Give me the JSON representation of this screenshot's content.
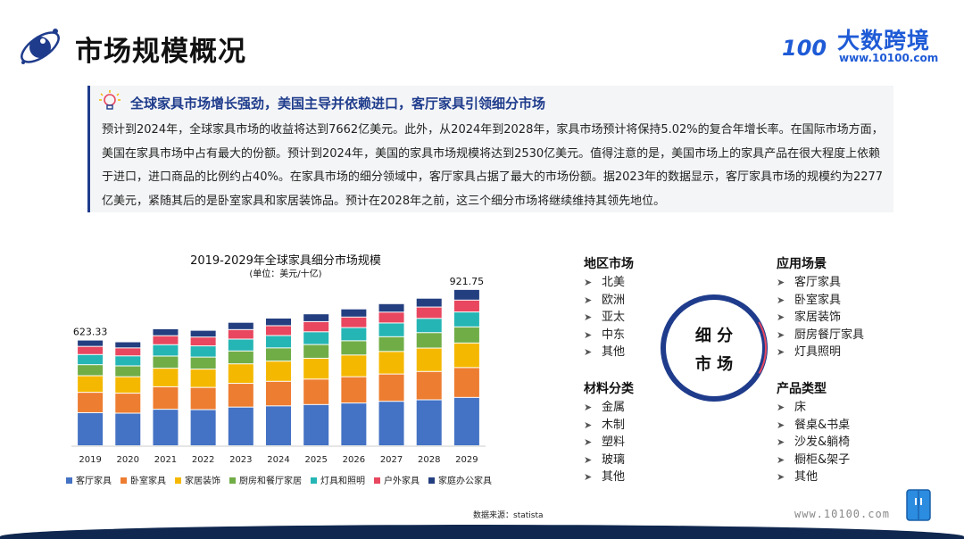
{
  "header": {
    "title": "市场规模概况",
    "brand_name": "大数跨境",
    "brand_url": "www.10100.com",
    "brand_logo_text": "100",
    "brand_color": "#1f5bd6"
  },
  "summary": {
    "heading": "全球家具市场增长强劲，美国主导并依赖进口，客厅家具引领细分市场",
    "body": "预计到2024年，全球家具市场的收益将达到7662亿美元。此外，从2024年到2028年，家具市场预计将保持5.02%的复合年增长率。在国际市场方面，美国在家具市场中占有最大的份额。预计到2024年，美国的家具市场规模将达到2530亿美元。值得注意的是，美国市场上的家具产品在很大程度上依赖于进口，进口商品的比例约占40%。在家具市场的细分领域中，客厅家具占据了最大的市场份额。据2023年的数据显示，客厅家具市场的规模约为2277亿美元，紧随其后的是卧室家具和家居装饰品。预计在2028年之前，这三个细分市场将继续维持其领先地位。"
  },
  "chart_data": {
    "type": "bar",
    "stacked": true,
    "title": "2019-2029年全球家具细分市场规模",
    "subtitle": "(单位：美元/十亿)",
    "categories": [
      "2019",
      "2020",
      "2021",
      "2022",
      "2023",
      "2024",
      "2025",
      "2026",
      "2027",
      "2028",
      "2029"
    ],
    "ylim": [
      0,
      1000
    ],
    "grid": false,
    "legend_position": "bottom",
    "series": [
      {
        "name": "客厅家具",
        "color": "#4472c4",
        "values": [
          195,
          192,
          215,
          213,
          228,
          235,
          243,
          252,
          262,
          271,
          285
        ]
      },
      {
        "name": "卧室家具",
        "color": "#ed7d31",
        "values": [
          120,
          118,
          133,
          131,
          140,
          145,
          150,
          155,
          161,
          167,
          176
        ]
      },
      {
        "name": "家居装饰",
        "color": "#f5b800",
        "values": [
          98,
          97,
          109,
          108,
          115,
          119,
          123,
          128,
          133,
          138,
          145
        ]
      },
      {
        "name": "厨房和餐厅家居",
        "color": "#70ad47",
        "values": [
          65,
          64,
          72,
          71,
          76,
          78,
          81,
          84,
          87,
          91,
          95
        ]
      },
      {
        "name": "灯具和照明",
        "color": "#26b5b5",
        "values": [
          60,
          59,
          67,
          66,
          70,
          73,
          75,
          78,
          81,
          84,
          88
        ]
      },
      {
        "name": "户外家具",
        "color": "#e8475f",
        "values": [
          48,
          47,
          53,
          52,
          56,
          58,
          60,
          62,
          64,
          67,
          70
        ]
      },
      {
        "name": "家庭办公家具",
        "color": "#243f80",
        "values": [
          37.33,
          36,
          41,
          40,
          43,
          45,
          46,
          48,
          50,
          52,
          62.75
        ]
      }
    ],
    "annotations": [
      {
        "category": "2019",
        "label": "623.33"
      },
      {
        "category": "2029",
        "label": "921.75"
      }
    ],
    "source": "数据来源：statista"
  },
  "segments": {
    "center_label_1": "细 分",
    "center_label_2": "市 场",
    "ring_color": "#1f3c8c",
    "groups": [
      {
        "title": "地区市场",
        "items": [
          "北美",
          "欧洲",
          "亚太",
          "中东",
          "其他"
        ]
      },
      {
        "title": "材料分类",
        "items": [
          "金属",
          "木制",
          "塑料",
          "玻璃",
          "其他"
        ]
      },
      {
        "title": "应用场景",
        "items": [
          "客厅家具",
          "卧室家具",
          "家居装饰",
          "厨房餐厅家具",
          "灯具照明"
        ]
      },
      {
        "title": "产品类型",
        "items": [
          "床",
          "餐桌&书桌",
          "沙发&躺椅",
          "橱柜&架子",
          "其他"
        ]
      }
    ],
    "bullet_icon": "chevron-right-icon"
  },
  "footer": {
    "url": "www.10100.com",
    "icon": "fridge-icon",
    "bar_color": "#10284f"
  }
}
